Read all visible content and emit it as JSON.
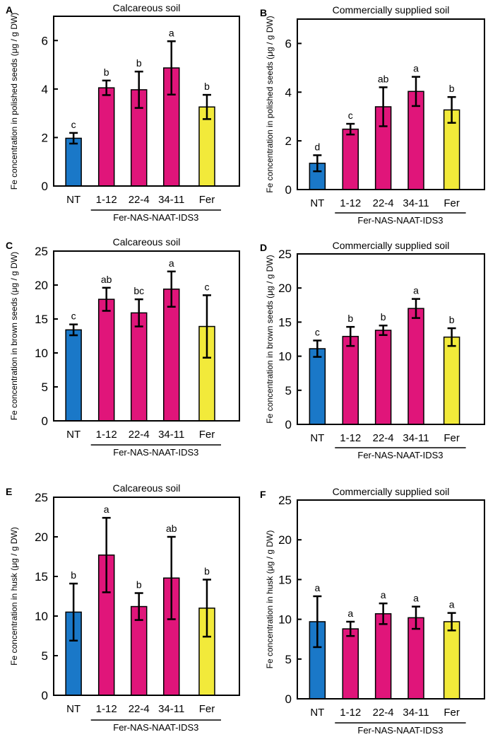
{
  "chart_data": [
    {
      "type": "bar",
      "panel": "A",
      "title": "Calcareous soil",
      "ylabel": "Fe concentration in polished seeds  (μg / g DW)",
      "ylim": [
        0,
        7
      ],
      "yticks": [
        0,
        2,
        4,
        6
      ],
      "categories": [
        "NT",
        "1-12",
        "22-4",
        "34-11",
        "Fer"
      ],
      "values": [
        1.97,
        4.05,
        3.97,
        4.87,
        3.26
      ],
      "errors": [
        0.22,
        0.3,
        0.75,
        1.1,
        0.5
      ],
      "letters": [
        "c",
        "b",
        "b",
        "a",
        "b"
      ],
      "group_label": "Fer-NAS-NAAT-IDS3"
    },
    {
      "type": "bar",
      "panel": "B",
      "title": "Commercially supplied soil",
      "ylabel": "Fe concentration in polished seeds  (μg / g DW)",
      "ylim": [
        0,
        7
      ],
      "yticks": [
        0,
        2,
        4,
        6
      ],
      "categories": [
        "NT",
        "1-12",
        "22-4",
        "34-11",
        "Fer"
      ],
      "values": [
        1.08,
        2.48,
        3.4,
        4.03,
        3.27
      ],
      "errors": [
        0.33,
        0.22,
        0.8,
        0.6,
        0.53
      ],
      "letters": [
        "d",
        "c",
        "ab",
        "a",
        "b"
      ],
      "group_label": "Fer-NAS-NAAT-IDS3"
    },
    {
      "type": "bar",
      "panel": "C",
      "title": "Calcareous soil",
      "ylabel": "Fe concentration in brown seeds  (μg / g DW)",
      "ylim": [
        0,
        25
      ],
      "yticks": [
        0,
        5,
        10,
        15,
        20,
        25
      ],
      "categories": [
        "NT",
        "1-12",
        "22-4",
        "34-11",
        "Fer"
      ],
      "values": [
        13.4,
        17.9,
        15.9,
        19.4,
        13.9
      ],
      "errors": [
        0.8,
        1.7,
        2.0,
        2.6,
        4.6
      ],
      "letters": [
        "c",
        "ab",
        "bc",
        "a",
        "c"
      ],
      "group_label": "Fer-NAS-NAAT-IDS3"
    },
    {
      "type": "bar",
      "panel": "D",
      "title": "Commercially supplied soil",
      "ylabel": "Fe concentration in brown seeds  (μg / g DW)",
      "ylim": [
        0,
        25
      ],
      "yticks": [
        0,
        5,
        10,
        15,
        20,
        25
      ],
      "categories": [
        "NT",
        "1-12",
        "22-4",
        "34-11",
        "Fer"
      ],
      "values": [
        11.1,
        12.9,
        13.8,
        17.0,
        12.8
      ],
      "errors": [
        1.2,
        1.4,
        0.7,
        1.4,
        1.3
      ],
      "letters": [
        "c",
        "b",
        "b",
        "a",
        "b"
      ],
      "group_label": "Fer-NAS-NAAT-IDS3"
    },
    {
      "type": "bar",
      "panel": "E",
      "title": "Calcareous soil",
      "ylabel": "Fe concentration in husk  (μg / g DW)",
      "ylim": [
        0,
        25
      ],
      "yticks": [
        0,
        5,
        10,
        15,
        20,
        25
      ],
      "categories": [
        "NT",
        "1-12",
        "22-4",
        "34-11",
        "Fer"
      ],
      "values": [
        10.5,
        17.7,
        11.2,
        14.8,
        11.0
      ],
      "errors": [
        3.6,
        4.7,
        1.7,
        5.2,
        3.6
      ],
      "letters": [
        "b",
        "a",
        "b",
        "ab",
        "b"
      ],
      "group_label": "Fer-NAS-NAAT-IDS3"
    },
    {
      "type": "bar",
      "panel": "F",
      "title": "Commercially supplied soil",
      "ylabel": "Fe concentration in husk  (μg / g DW)",
      "ylim": [
        0,
        25
      ],
      "yticks": [
        0,
        5,
        10,
        15,
        20,
        25
      ],
      "categories": [
        "NT",
        "1-12",
        "22-4",
        "34-11",
        "Fer"
      ],
      "values": [
        9.7,
        8.8,
        10.7,
        10.2,
        9.7
      ],
      "errors": [
        3.2,
        0.9,
        1.3,
        1.4,
        1.1
      ],
      "letters": [
        "a",
        "a",
        "a",
        "a",
        "a"
      ],
      "group_label": "Fer-NAS-NAAT-IDS3"
    }
  ],
  "colors": {
    "NT": "#1a78c8",
    "transgenic": "#e0157a",
    "Fer": "#f2ea3a"
  }
}
